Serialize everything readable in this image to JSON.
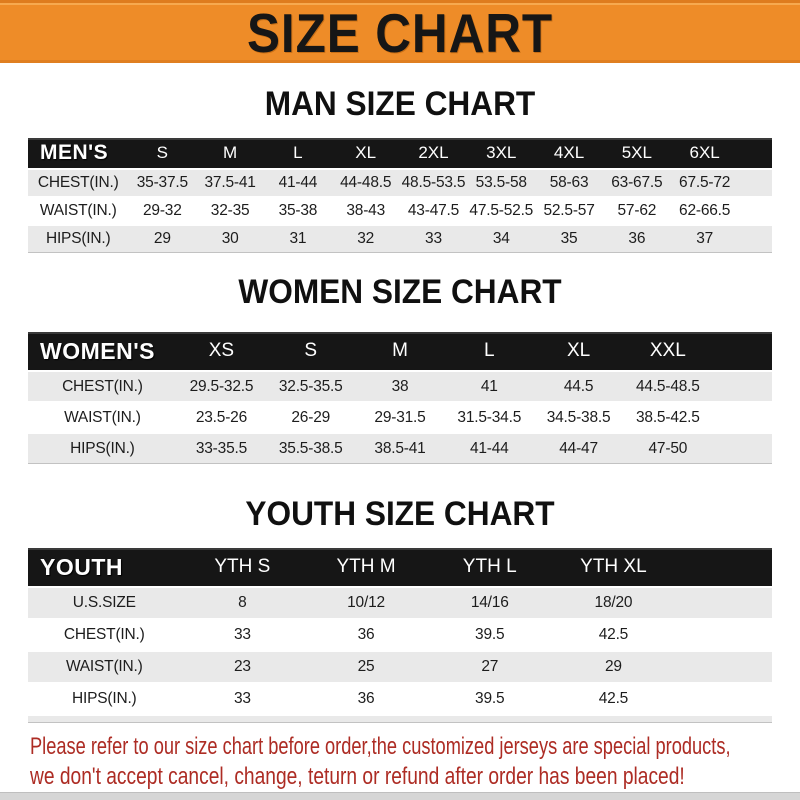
{
  "banner": {
    "title": "SIZE CHART"
  },
  "colors": {
    "accent_orange": "#EE8C28",
    "bar_black": "#161616",
    "row_gray": "#E9E9E9",
    "footer_red": "#AD2C24"
  },
  "sections": [
    {
      "heading": "MAN SIZE CHART",
      "table": {
        "label": "MEN'S",
        "columns": [
          "S",
          "M",
          "L",
          "XL",
          "2XL",
          "3XL",
          "4XL",
          "5XL",
          "6XL"
        ],
        "rows": [
          {
            "label": "CHEST(IN.)",
            "values": [
              "35-37.5",
              "37.5-41",
              "41-44",
              "44-48.5",
              "48.5-53.5",
              "53.5-58",
              "58-63",
              "63-67.5",
              "67.5-72"
            ]
          },
          {
            "label": "WAIST(IN.)",
            "values": [
              "29-32",
              "32-35",
              "35-38",
              "38-43",
              "43-47.5",
              "47.5-52.5",
              "52.5-57",
              "57-62",
              "62-66.5"
            ]
          },
          {
            "label": "HIPS(IN.)",
            "values": [
              "29",
              "30",
              "31",
              "32",
              "33",
              "34",
              "35",
              "36",
              "37"
            ]
          }
        ]
      }
    },
    {
      "heading": "WOMEN SIZE CHART",
      "table": {
        "label": "WOMEN'S",
        "columns": [
          "XS",
          "S",
          "M",
          "L",
          "XL",
          "XXL"
        ],
        "rows": [
          {
            "label": "CHEST(IN.)",
            "values": [
              "29.5-32.5",
              "32.5-35.5",
              "38",
              "41",
              "44.5",
              "44.5-48.5"
            ]
          },
          {
            "label": "WAIST(IN.)",
            "values": [
              "23.5-26",
              "26-29",
              "29-31.5",
              "31.5-34.5",
              "34.5-38.5",
              "38.5-42.5"
            ]
          },
          {
            "label": "HIPS(IN.)",
            "values": [
              "33-35.5",
              "35.5-38.5",
              "38.5-41",
              "41-44",
              "44-47",
              "47-50"
            ]
          }
        ]
      }
    },
    {
      "heading": "YOUTH SIZE CHART",
      "table": {
        "label": "YOUTH",
        "columns": [
          "YTH S",
          "YTH M",
          "YTH L",
          "YTH XL"
        ],
        "rows": [
          {
            "label": "U.S.SIZE",
            "values": [
              "8",
              "10/12",
              "14/16",
              "18/20"
            ]
          },
          {
            "label": "CHEST(IN.)",
            "values": [
              "33",
              "36",
              "39.5",
              "42.5"
            ]
          },
          {
            "label": "WAIST(IN.)",
            "values": [
              "23",
              "25",
              "27",
              "29"
            ]
          },
          {
            "label": "HIPS(IN.)",
            "values": [
              "33",
              "36",
              "39.5",
              "42.5"
            ]
          }
        ]
      }
    }
  ],
  "footer": {
    "lines": [
      "Please refer to our size chart before order,the customized jerseys are special products,",
      "we don't accept cancel, change, teturn or refund after order has been placed!"
    ]
  }
}
